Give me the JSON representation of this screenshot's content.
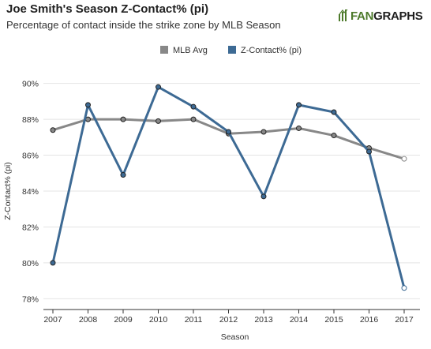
{
  "header": {
    "title": "Joe Smith's Season Z-Contact% (pi)",
    "subtitle": "Percentage of contact inside the strike zone by MLB Season"
  },
  "logo": {
    "text_green": "FAN",
    "text_dark": "GRAPHS"
  },
  "chart_data": {
    "type": "line",
    "xlabel": "Season",
    "ylabel": "Z-Contact% (pi)",
    "ylim": [
      77.4,
      90.6
    ],
    "yticks": [
      78,
      80,
      82,
      84,
      86,
      88,
      90
    ],
    "ytick_labels": [
      "78%",
      "80%",
      "82%",
      "84%",
      "86%",
      "88%",
      "90%"
    ],
    "x": [
      2007,
      2008,
      2009,
      2010,
      2011,
      2012,
      2013,
      2014,
      2015,
      2016,
      2017
    ],
    "x_labels": [
      "2007",
      "2008",
      "2009",
      "2010",
      "2011",
      "2012",
      "2013",
      "2014",
      "2015",
      "2016",
      "2017"
    ],
    "grid": "horizontal",
    "legend_position": "top-center",
    "series": [
      {
        "name": "MLB Avg",
        "color": "#888888",
        "values": [
          87.4,
          88.0,
          88.0,
          87.9,
          88.0,
          87.2,
          87.3,
          87.5,
          87.1,
          86.4,
          85.8
        ]
      },
      {
        "name": "Z-Contact% (pi)",
        "color": "#3d6a94",
        "values": [
          80.0,
          88.8,
          84.9,
          89.8,
          88.7,
          87.3,
          83.7,
          88.8,
          88.4,
          86.2,
          78.6
        ]
      }
    ]
  }
}
